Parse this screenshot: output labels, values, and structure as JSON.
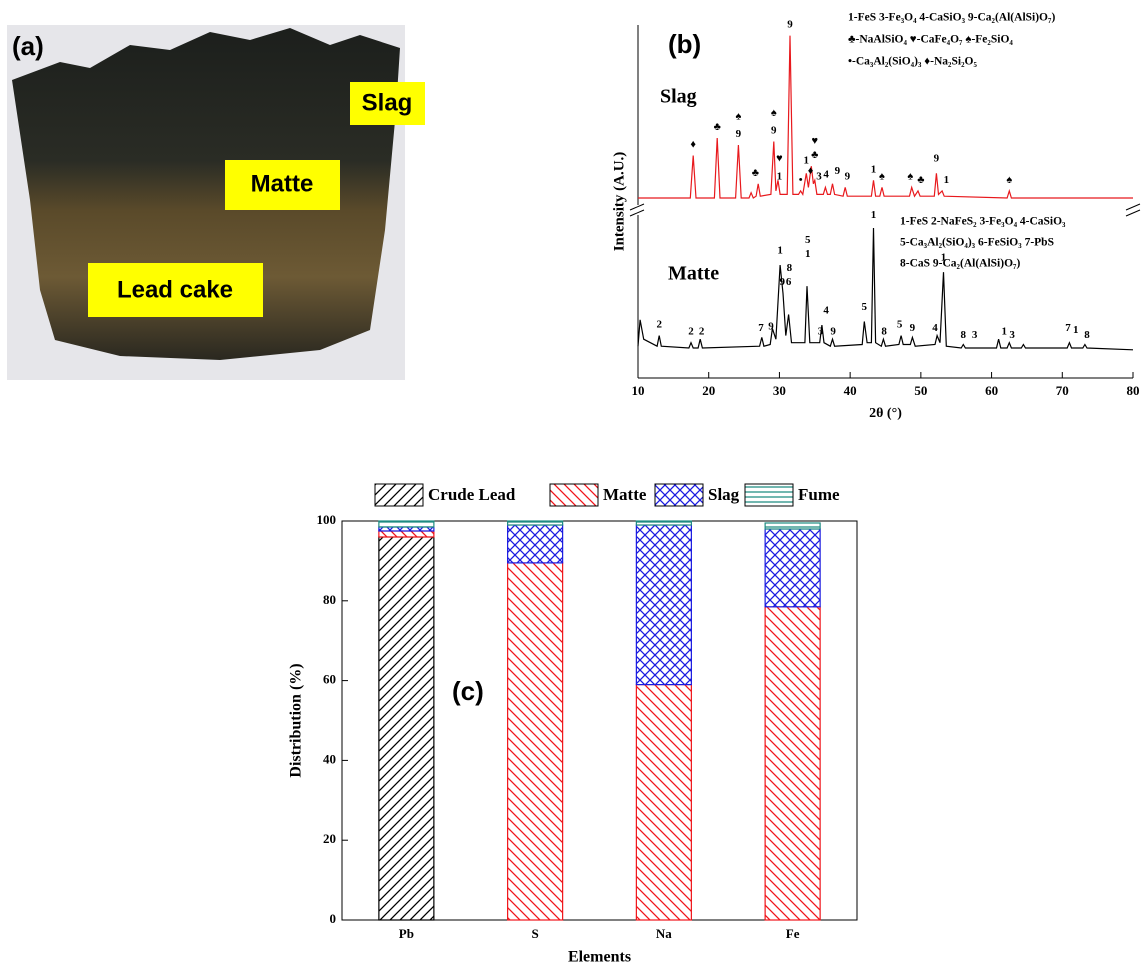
{
  "photo": {
    "panel": "(a)",
    "labels": [
      "Slag",
      "Matte",
      "Lead cake"
    ]
  },
  "chart_data": [
    {
      "type": "line",
      "panel": "(b)",
      "xlabel": "2θ (°)",
      "ylabel": "Intensity (A.U.)",
      "xlim": [
        10,
        80
      ],
      "xticks": [
        10,
        20,
        30,
        40,
        50,
        60,
        70,
        80
      ],
      "ylim": [
        0,
        100
      ],
      "keys": [
        "1-FeS  3-Fe₃O₄  4-CaSiO₃  9-Ca₂(Al(AlSi)O₇)",
        "♣-NaAlSiO₄  ♥-CaFe₄O₇  ♠-Fe₂SiO₄",
        "•-Ca₃Al₂(SiO₄)₃  ♦-Na₂Si₂O₅",
        "1-FeS   2-NaFeS₂   3-Fe₃O₄   4-CaSiO₃",
        "5-Ca₃Al₂(SiO₄)₃  6-FeSiO₃  7-PbS",
        "8-CaS   9-Ca₂(Al(AlSi)O₇)"
      ],
      "series": [
        {
          "name": "Slag",
          "color": "#e8191d",
          "x": [
            10,
            17.4,
            17.8,
            18.2,
            20.8,
            21.2,
            21.6,
            23.8,
            24.2,
            24.6,
            25.7,
            26,
            26.3,
            26.7,
            27,
            27.3,
            28.8,
            29.2,
            29.5,
            29.8,
            30.1,
            31.1,
            31.5,
            31.9,
            32.7,
            33,
            33.3,
            33.8,
            34.1,
            34.5,
            34.8,
            35,
            35.3,
            36.2,
            36.5,
            36.8,
            37.2,
            37.5,
            37.8,
            39,
            39.3,
            39.6,
            43,
            43.3,
            43.6,
            44.2,
            44.5,
            44.8,
            48.4,
            48.7,
            49.1,
            49.6,
            49.9,
            51.9,
            52.2,
            52.5,
            53,
            53.3,
            62.2,
            62.5,
            62.8,
            80
          ],
          "values": [
            51,
            51,
            63,
            51,
            51,
            68,
            51,
            51,
            66,
            51,
            51,
            52.5,
            51,
            51.5,
            55,
            51.5,
            52,
            67,
            53,
            56,
            52,
            52,
            97,
            52,
            52,
            53,
            52,
            58,
            54,
            60,
            55,
            56,
            52,
            52,
            54,
            52,
            52,
            55,
            52,
            51.5,
            54,
            51.5,
            51.5,
            56,
            51.5,
            51.5,
            54,
            51.5,
            51.5,
            54,
            51.5,
            53,
            51.5,
            51.5,
            58,
            52,
            53,
            51.5,
            51,
            53,
            51,
            51
          ]
        },
        {
          "name": "Matte",
          "color": "#000000",
          "x": [
            10,
            10.3,
            10.8,
            12.7,
            13,
            13.3,
            17.2,
            17.5,
            17.8,
            18.5,
            18.8,
            19.1,
            27.2,
            27.5,
            27.8,
            28.7,
            29,
            29.5,
            30.1,
            30.5,
            30.9,
            31.3,
            31.7,
            33.6,
            33.9,
            34.3,
            35.7,
            36,
            36.3,
            37.2,
            37.5,
            37.8,
            41.7,
            42,
            42.4,
            43,
            43.3,
            43.6,
            44.4,
            44.7,
            45,
            46.9,
            47.2,
            47.5,
            48.5,
            48.8,
            49.2,
            52,
            52.3,
            52.7,
            53.2,
            53.6,
            55.7,
            56,
            56.3,
            60.7,
            61,
            61.3,
            62.2,
            62.5,
            62.8,
            64.2,
            64.5,
            64.8,
            70.7,
            71,
            71.3,
            72.9,
            73.2,
            73.5,
            80
          ],
          "values": [
            9,
            16.5,
            11,
            9,
            12,
            9,
            8.5,
            10,
            8.5,
            8.5,
            11,
            8.5,
            9,
            11.5,
            9,
            9.5,
            14,
            11,
            32,
            24,
            12,
            18,
            10,
            10,
            26,
            10,
            10,
            15,
            10,
            9,
            11,
            9,
            9.5,
            16,
            10,
            10,
            42.5,
            10,
            9,
            11,
            9,
            9.5,
            12,
            9.5,
            9.5,
            11.5,
            9,
            9.5,
            12,
            10,
            30,
            9,
            8.5,
            9.5,
            8.5,
            8.5,
            11,
            8.5,
            8.5,
            10,
            8.5,
            8.5,
            9.5,
            8.5,
            8.5,
            10,
            8.5,
            8.5,
            9.5,
            8.5,
            8
          ]
        }
      ],
      "annotations": [
        {
          "text": "♦",
          "x": 17.8,
          "y": 66
        },
        {
          "text": "♣",
          "x": 21.2,
          "y": 71
        },
        {
          "text": "9",
          "x": 24.2,
          "y": 69
        },
        {
          "text": "♠",
          "x": 24.2,
          "y": 74
        },
        {
          "text": "♣",
          "x": 26.6,
          "y": 58
        },
        {
          "text": "9",
          "x": 29.2,
          "y": 70
        },
        {
          "text": "♠",
          "x": 29.2,
          "y": 75
        },
        {
          "text": "♥",
          "x": 30,
          "y": 62
        },
        {
          "text": "1",
          "x": 30,
          "y": 57
        },
        {
          "text": "9",
          "x": 31.5,
          "y": 100
        },
        {
          "text": "•",
          "x": 33,
          "y": 56
        },
        {
          "text": "1",
          "x": 33.8,
          "y": 61.5
        },
        {
          "text": "♦",
          "x": 34.4,
          "y": 58.5
        },
        {
          "text": "♥",
          "x": 35,
          "y": 67
        },
        {
          "text": "♣",
          "x": 35,
          "y": 63
        },
        {
          "text": "3",
          "x": 35.6,
          "y": 57
        },
        {
          "text": "4",
          "x": 36.6,
          "y": 57.5
        },
        {
          "text": "9",
          "x": 38.2,
          "y": 58.5
        },
        {
          "text": "9",
          "x": 39.6,
          "y": 57
        },
        {
          "text": "1",
          "x": 43.3,
          "y": 59
        },
        {
          "text": "♠",
          "x": 44.5,
          "y": 57
        },
        {
          "text": "♠",
          "x": 48.5,
          "y": 57
        },
        {
          "text": "♣",
          "x": 50,
          "y": 56
        },
        {
          "text": "9",
          "x": 52.2,
          "y": 62
        },
        {
          "text": "1",
          "x": 53.6,
          "y": 56
        },
        {
          "text": "♠",
          "x": 62.5,
          "y": 56
        },
        {
          "text": "2",
          "x": 13,
          "y": 15
        },
        {
          "text": "2",
          "x": 17.5,
          "y": 13
        },
        {
          "text": "2",
          "x": 19,
          "y": 13
        },
        {
          "text": "7",
          "x": 27.4,
          "y": 14
        },
        {
          "text": "9",
          "x": 28.8,
          "y": 14.5
        },
        {
          "text": "1",
          "x": 30.1,
          "y": 36
        },
        {
          "text": "9",
          "x": 30.4,
          "y": 27
        },
        {
          "text": "6",
          "x": 31.3,
          "y": 27
        },
        {
          "text": "8",
          "x": 31.4,
          "y": 31
        },
        {
          "text": "5",
          "x": 34,
          "y": 39
        },
        {
          "text": "1",
          "x": 34,
          "y": 35
        },
        {
          "text": "4",
          "x": 36.6,
          "y": 19
        },
        {
          "text": "3",
          "x": 35.8,
          "y": 13
        },
        {
          "text": "9",
          "x": 37.6,
          "y": 13
        },
        {
          "text": "1",
          "x": 43.3,
          "y": 46
        },
        {
          "text": "5",
          "x": 42,
          "y": 20
        },
        {
          "text": "8",
          "x": 44.8,
          "y": 13
        },
        {
          "text": "5",
          "x": 47,
          "y": 15
        },
        {
          "text": "9",
          "x": 48.8,
          "y": 14
        },
        {
          "text": "4",
          "x": 52,
          "y": 14
        },
        {
          "text": "1",
          "x": 53.2,
          "y": 34
        },
        {
          "text": "8",
          "x": 56,
          "y": 12
        },
        {
          "text": "3",
          "x": 57.6,
          "y": 12
        },
        {
          "text": "1",
          "x": 61.8,
          "y": 13
        },
        {
          "text": "3",
          "x": 62.9,
          "y": 12
        },
        {
          "text": "7",
          "x": 70.8,
          "y": 14
        },
        {
          "text": "1",
          "x": 71.9,
          "y": 13.5
        },
        {
          "text": "8",
          "x": 73.5,
          "y": 12
        }
      ]
    },
    {
      "type": "stacked_bar",
      "panel": "(c)",
      "xlabel": "Elements",
      "ylabel": "Distribution (%)",
      "categories": [
        "Pb",
        "S",
        "Na",
        "Fe"
      ],
      "ylim": [
        0,
        100
      ],
      "yticks": [
        0,
        20,
        40,
        60,
        80,
        100
      ],
      "legend": "top",
      "series": [
        {
          "name": "Crude Lead",
          "color": "#000000",
          "hatch": "forward",
          "values": [
            96,
            0,
            0,
            0
          ]
        },
        {
          "name": "Matte",
          "color": "#f0141a",
          "hatch": "backward",
          "values": [
            1.5,
            89.5,
            59,
            78.5
          ]
        },
        {
          "name": "Slag",
          "color": "#1a1ae0",
          "hatch": "cross",
          "values": [
            1,
            9.5,
            40,
            19.5
          ]
        },
        {
          "name": "Fume",
          "color": "#1e8c82",
          "hatch": "horizontal",
          "values": [
            1.5,
            1,
            1,
            1.5
          ]
        }
      ]
    }
  ]
}
